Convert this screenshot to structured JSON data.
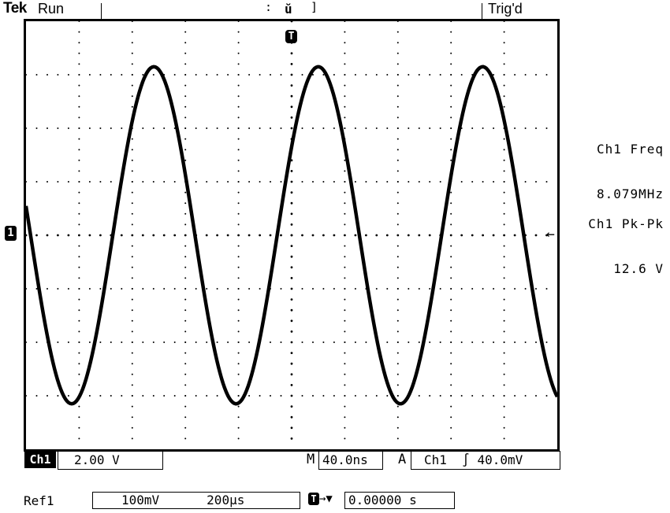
{
  "header": {
    "brand": "Tek",
    "run_status": "Run",
    "trigger_status": "Trig'd"
  },
  "markers": {
    "ch1_ground": "1",
    "trigger_position": "T",
    "trigger_level_arrow": "←"
  },
  "measurements": [
    {
      "label": "Ch1 Freq",
      "value": "8.079MHz"
    },
    {
      "label": "Ch1 Pk-Pk",
      "value": "12.6 V"
    }
  ],
  "readout": {
    "ch1_label": "Ch1",
    "ch1_scale": "2.00 V",
    "timebase_prefix": "M",
    "timebase": "40.0ns",
    "trigger_mode_prefix": "A",
    "trigger_source": "Ch1",
    "trigger_slope_glyph": "∫",
    "trigger_level": "40.0mV"
  },
  "ref1": {
    "label": "Ref1",
    "volts": "100mV",
    "time": "200µs",
    "trig_offset_glyph": "→▼",
    "trig_offset": "0.00000 s"
  },
  "colors": {
    "trace": "#000000",
    "background": "#ffffff"
  },
  "trace": {
    "waveform": "sine",
    "volts_per_div": 2.0,
    "seconds_per_div": 4e-08,
    "amplitude_V": 6.3,
    "offset_V": 0.0,
    "frequency_Hz": 8079000.0,
    "phase_at_left_edge_deg": 170
  }
}
